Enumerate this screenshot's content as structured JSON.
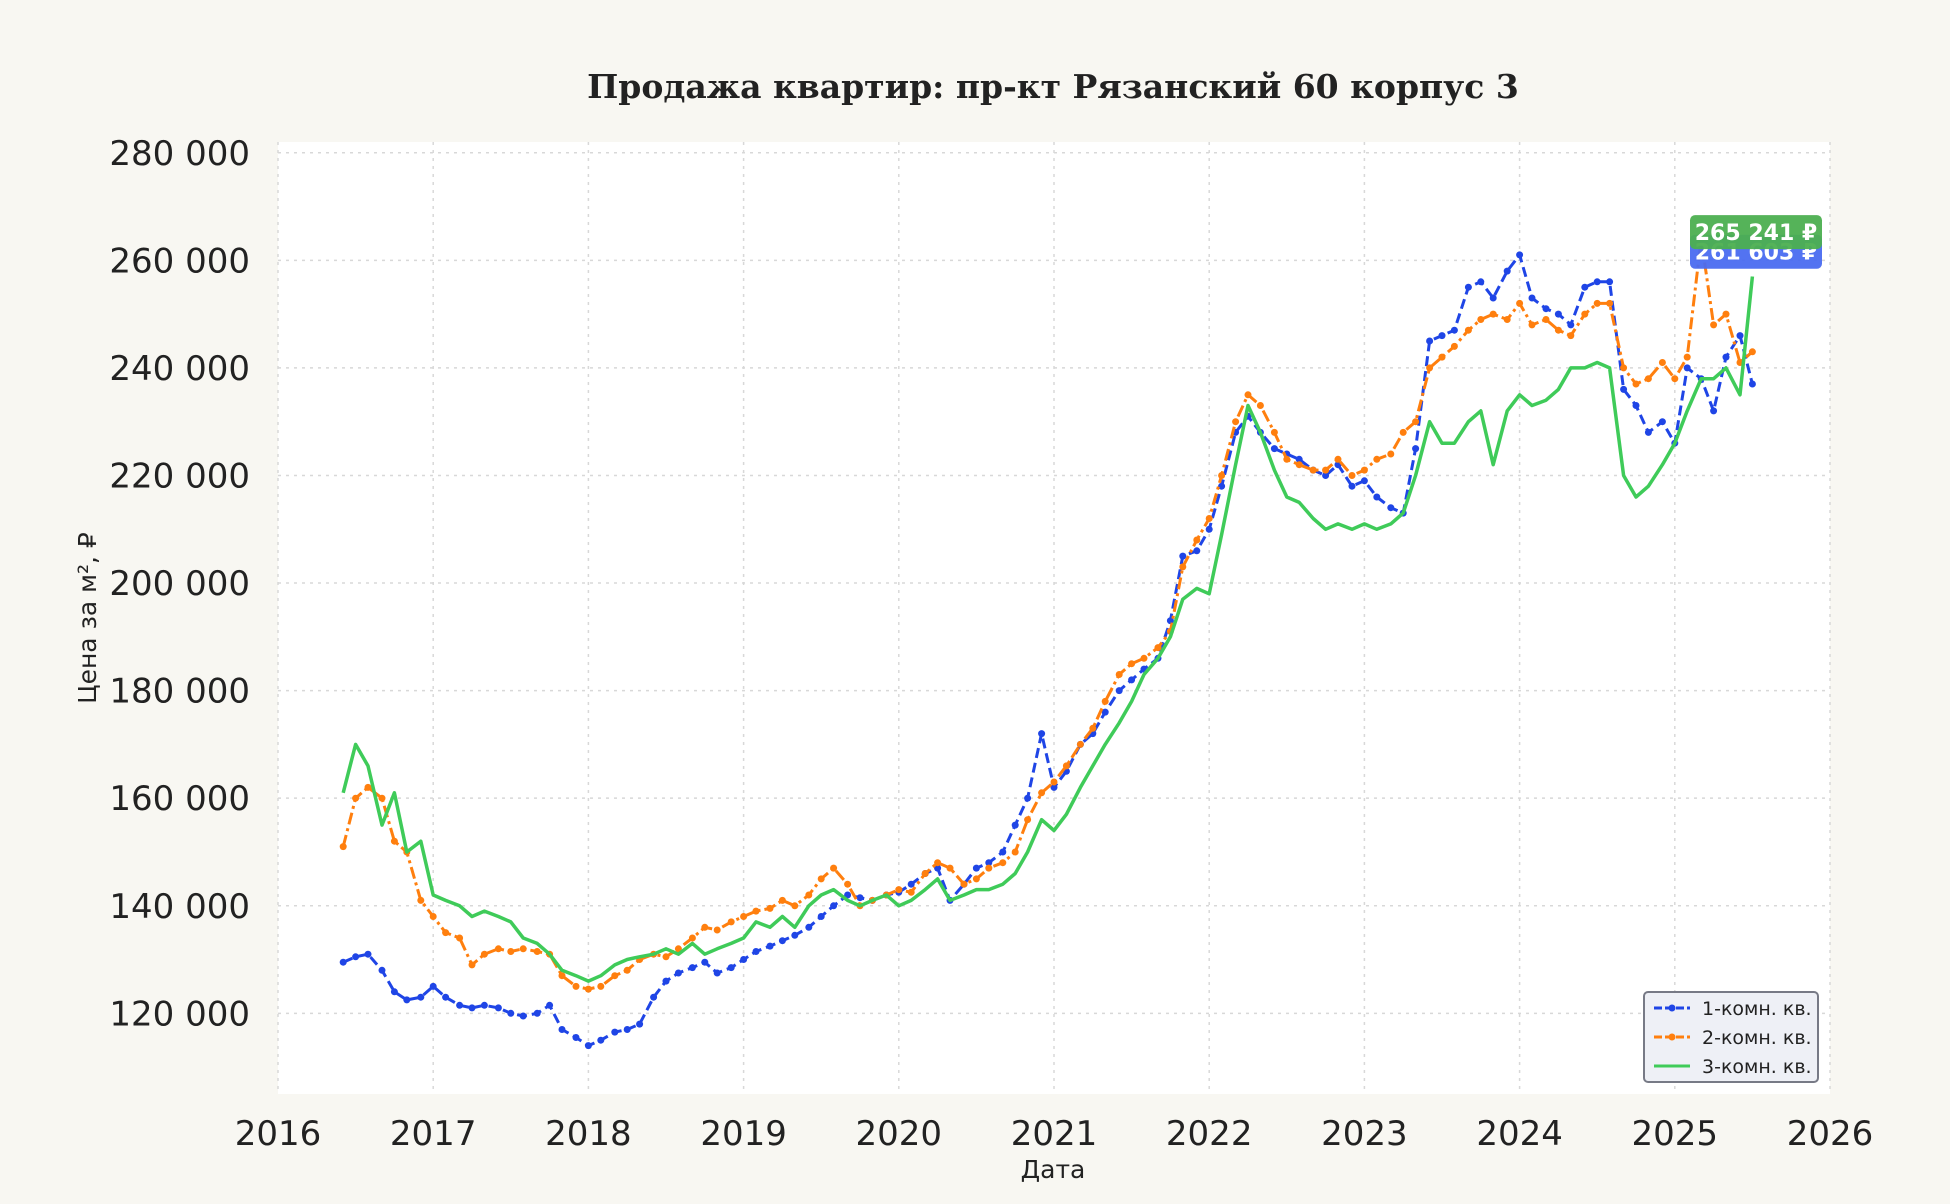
{
  "chart_data": {
    "type": "line",
    "title": "Продажа квартир: пр-кт Рязанский 60 корпус 3",
    "xlabel": "Дата",
    "ylabel": "Цена за м², ₽",
    "xlim": [
      2016.0,
      2026.0
    ],
    "ylim": [
      105000,
      282000
    ],
    "x_ticks": [
      "2016",
      "2017",
      "2018",
      "2019",
      "2020",
      "2021",
      "2022",
      "2023",
      "2024",
      "2025",
      "2026"
    ],
    "y_ticks": [
      {
        "value": 120000,
        "label": "120 000"
      },
      {
        "value": 140000,
        "label": "140 000"
      },
      {
        "value": 160000,
        "label": "160 000"
      },
      {
        "value": 180000,
        "label": "180 000"
      },
      {
        "value": 200000,
        "label": "200 000"
      },
      {
        "value": 220000,
        "label": "220 000"
      },
      {
        "value": 240000,
        "label": "240 000"
      },
      {
        "value": 260000,
        "label": "260 000"
      },
      {
        "value": 280000,
        "label": "280 000"
      }
    ],
    "grid": true,
    "legend_position": "bottom-right",
    "series": [
      {
        "name": "1-комн. кв.",
        "color": "#1f45e6",
        "style": "dashed-dots",
        "x": [
          2016.42,
          2016.5,
          2016.58,
          2016.67,
          2016.75,
          2016.83,
          2016.92,
          2017.0,
          2017.08,
          2017.17,
          2017.25,
          2017.33,
          2017.42,
          2017.5,
          2017.58,
          2017.67,
          2017.75,
          2017.83,
          2017.92,
          2018.0,
          2018.08,
          2018.17,
          2018.25,
          2018.33,
          2018.42,
          2018.5,
          2018.58,
          2018.67,
          2018.75,
          2018.83,
          2018.92,
          2019.0,
          2019.08,
          2019.17,
          2019.25,
          2019.33,
          2019.42,
          2019.5,
          2019.58,
          2019.67,
          2019.75,
          2019.83,
          2019.92,
          2020.0,
          2020.08,
          2020.17,
          2020.25,
          2020.33,
          2020.42,
          2020.5,
          2020.58,
          2020.67,
          2020.75,
          2020.83,
          2020.92,
          2021.0,
          2021.08,
          2021.17,
          2021.25,
          2021.33,
          2021.42,
          2021.5,
          2021.58,
          2021.67,
          2021.75,
          2021.83,
          2021.92,
          2022.0,
          2022.08,
          2022.17,
          2022.25,
          2022.33,
          2022.42,
          2022.5,
          2022.58,
          2022.67,
          2022.75,
          2022.83,
          2022.92,
          2023.0,
          2023.08,
          2023.17,
          2023.25,
          2023.33,
          2023.42,
          2023.5,
          2023.58,
          2023.67,
          2023.75,
          2023.83,
          2023.92,
          2024.0,
          2024.08,
          2024.17,
          2024.25,
          2024.33,
          2024.42,
          2024.5,
          2024.58,
          2024.67,
          2024.75,
          2024.83,
          2024.92,
          2025.0,
          2025.08,
          2025.17,
          2025.25,
          2025.33,
          2025.42,
          2025.5
        ],
        "values": [
          129500,
          130500,
          131000,
          128000,
          124000,
          122500,
          123000,
          125000,
          123000,
          121500,
          121000,
          121500,
          121000,
          120000,
          119500,
          120000,
          121500,
          117000,
          115500,
          114000,
          115000,
          116500,
          117000,
          118000,
          123000,
          126000,
          127500,
          128500,
          129500,
          127500,
          128500,
          130000,
          131500,
          132500,
          133500,
          134500,
          136000,
          138000,
          140000,
          142000,
          141500,
          141000,
          142000,
          142500,
          144000,
          146000,
          147000,
          141000,
          144000,
          147000,
          148000,
          150000,
          155000,
          160000,
          172000,
          162000,
          165000,
          170000,
          172000,
          176000,
          180000,
          182000,
          184000,
          186000,
          193000,
          205000,
          206000,
          210000,
          218000,
          228000,
          231000,
          228000,
          225000,
          224000,
          223000,
          221000,
          220000,
          222000,
          218000,
          219000,
          216000,
          214000,
          213000,
          225000,
          245000,
          246000,
          247000,
          255000,
          256000,
          253000,
          258000,
          261000,
          253000,
          251000,
          250000,
          248000,
          255000,
          256000,
          256000,
          236000,
          233000,
          228000,
          230000,
          226000,
          240000,
          238000,
          232000,
          242000,
          246000,
          237000
        ]
      },
      {
        "name": "2-комн. кв.",
        "color": "#ff7f0e",
        "style": "dashdot-dots",
        "x": [
          2016.42,
          2016.5,
          2016.58,
          2016.67,
          2016.75,
          2016.83,
          2016.92,
          2017.0,
          2017.08,
          2017.17,
          2017.25,
          2017.33,
          2017.42,
          2017.5,
          2017.58,
          2017.67,
          2017.75,
          2017.83,
          2017.92,
          2018.0,
          2018.08,
          2018.17,
          2018.25,
          2018.33,
          2018.42,
          2018.5,
          2018.58,
          2018.67,
          2018.75,
          2018.83,
          2018.92,
          2019.0,
          2019.08,
          2019.17,
          2019.25,
          2019.33,
          2019.42,
          2019.5,
          2019.58,
          2019.67,
          2019.75,
          2019.83,
          2019.92,
          2020.0,
          2020.08,
          2020.17,
          2020.25,
          2020.33,
          2020.42,
          2020.5,
          2020.58,
          2020.67,
          2020.75,
          2020.83,
          2020.92,
          2021.0,
          2021.08,
          2021.17,
          2021.25,
          2021.33,
          2021.42,
          2021.5,
          2021.58,
          2021.67,
          2021.75,
          2021.83,
          2021.92,
          2022.0,
          2022.08,
          2022.17,
          2022.25,
          2022.33,
          2022.42,
          2022.5,
          2022.58,
          2022.67,
          2022.75,
          2022.83,
          2022.92,
          2023.0,
          2023.08,
          2023.17,
          2023.25,
          2023.33,
          2023.42,
          2023.5,
          2023.58,
          2023.67,
          2023.75,
          2023.83,
          2023.92,
          2024.0,
          2024.08,
          2024.17,
          2024.25,
          2024.33,
          2024.42,
          2024.5,
          2024.58,
          2024.67,
          2024.75,
          2024.83,
          2024.92,
          2025.0,
          2025.08,
          2025.17,
          2025.25,
          2025.33,
          2025.42,
          2025.5
        ],
        "values": [
          151000,
          160000,
          162000,
          160000,
          152000,
          150000,
          141000,
          138000,
          135000,
          134000,
          129000,
          131000,
          132000,
          131500,
          132000,
          131500,
          131000,
          127000,
          125000,
          124500,
          125000,
          127000,
          128000,
          130000,
          131000,
          130500,
          132000,
          134000,
          136000,
          135500,
          137000,
          138000,
          139000,
          139500,
          141000,
          140000,
          142000,
          145000,
          147000,
          144000,
          140000,
          141000,
          142000,
          143000,
          142500,
          146000,
          148000,
          147000,
          144000,
          145000,
          147000,
          148000,
          150000,
          156000,
          161000,
          163000,
          166000,
          170000,
          173000,
          178000,
          183000,
          185000,
          186000,
          188000,
          191000,
          203000,
          208000,
          212000,
          220000,
          230000,
          235000,
          233000,
          228000,
          223000,
          222000,
          221000,
          221000,
          223000,
          220000,
          221000,
          223000,
          224000,
          228000,
          230000,
          240000,
          242000,
          244000,
          247000,
          249000,
          250000,
          249000,
          252000,
          248000,
          249000,
          247000,
          246000,
          250000,
          252000,
          252000,
          240000,
          237000,
          238000,
          241000,
          238000,
          242000,
          264000,
          248000,
          250000,
          241000,
          243000
        ]
      },
      {
        "name": "3-комн. кв.",
        "color": "#3fcb59",
        "style": "solid",
        "x": [
          2016.42,
          2016.5,
          2016.58,
          2016.67,
          2016.75,
          2016.83,
          2016.92,
          2017.0,
          2017.08,
          2017.17,
          2017.25,
          2017.33,
          2017.42,
          2017.5,
          2017.58,
          2017.67,
          2017.75,
          2017.83,
          2017.92,
          2018.0,
          2018.08,
          2018.17,
          2018.25,
          2018.33,
          2018.42,
          2018.5,
          2018.58,
          2018.67,
          2018.75,
          2018.83,
          2018.92,
          2019.0,
          2019.08,
          2019.17,
          2019.25,
          2019.33,
          2019.42,
          2019.5,
          2019.58,
          2019.67,
          2019.75,
          2019.83,
          2019.92,
          2020.0,
          2020.08,
          2020.17,
          2020.25,
          2020.33,
          2020.42,
          2020.5,
          2020.58,
          2020.67,
          2020.75,
          2020.83,
          2020.92,
          2021.0,
          2021.08,
          2021.17,
          2021.25,
          2021.33,
          2021.42,
          2021.5,
          2021.58,
          2021.67,
          2021.75,
          2021.83,
          2021.92,
          2022.0,
          2022.08,
          2022.17,
          2022.25,
          2022.33,
          2022.42,
          2022.5,
          2022.58,
          2022.67,
          2022.75,
          2022.83,
          2022.92,
          2023.0,
          2023.08,
          2023.17,
          2023.25,
          2023.33,
          2023.42,
          2023.5,
          2023.58,
          2023.67,
          2023.75,
          2023.83,
          2023.92,
          2024.0,
          2024.08,
          2024.17,
          2024.25,
          2024.33,
          2024.42,
          2024.5,
          2024.58,
          2024.67,
          2024.75,
          2024.83,
          2024.92,
          2025.0,
          2025.08,
          2025.17,
          2025.25,
          2025.33,
          2025.42,
          2025.5
        ],
        "values": [
          161000,
          170000,
          166000,
          155000,
          161000,
          150000,
          152000,
          142000,
          141000,
          140000,
          138000,
          139000,
          138000,
          137000,
          134000,
          133000,
          131000,
          128000,
          127000,
          126000,
          127000,
          129000,
          130000,
          130500,
          131000,
          132000,
          131000,
          133000,
          131000,
          132000,
          133000,
          134000,
          137000,
          136000,
          138000,
          136000,
          140000,
          142000,
          143000,
          141000,
          140000,
          141000,
          142000,
          140000,
          141000,
          143000,
          145000,
          141000,
          142000,
          143000,
          143000,
          144000,
          146000,
          150000,
          156000,
          154000,
          157000,
          162000,
          166000,
          170000,
          174000,
          178000,
          183000,
          186000,
          190000,
          197000,
          199000,
          198000,
          209000,
          222000,
          233000,
          228000,
          221000,
          216000,
          215000,
          212000,
          210000,
          211000,
          210000,
          211000,
          210000,
          211000,
          213000,
          220000,
          230000,
          226000,
          226000,
          230000,
          232000,
          222000,
          232000,
          235000,
          233000,
          234000,
          236000,
          240000,
          240000,
          241000,
          240000,
          220000,
          216000,
          218000,
          222000,
          226000,
          232000,
          238000,
          238000,
          240000,
          235000,
          257000
        ]
      }
    ],
    "badges": [
      {
        "label": "265 241 ₽",
        "value": 265241,
        "color": "#4caf50"
      },
      {
        "label": "261 603 ₽",
        "value": 261603,
        "color": "#4a6cf0"
      }
    ]
  }
}
